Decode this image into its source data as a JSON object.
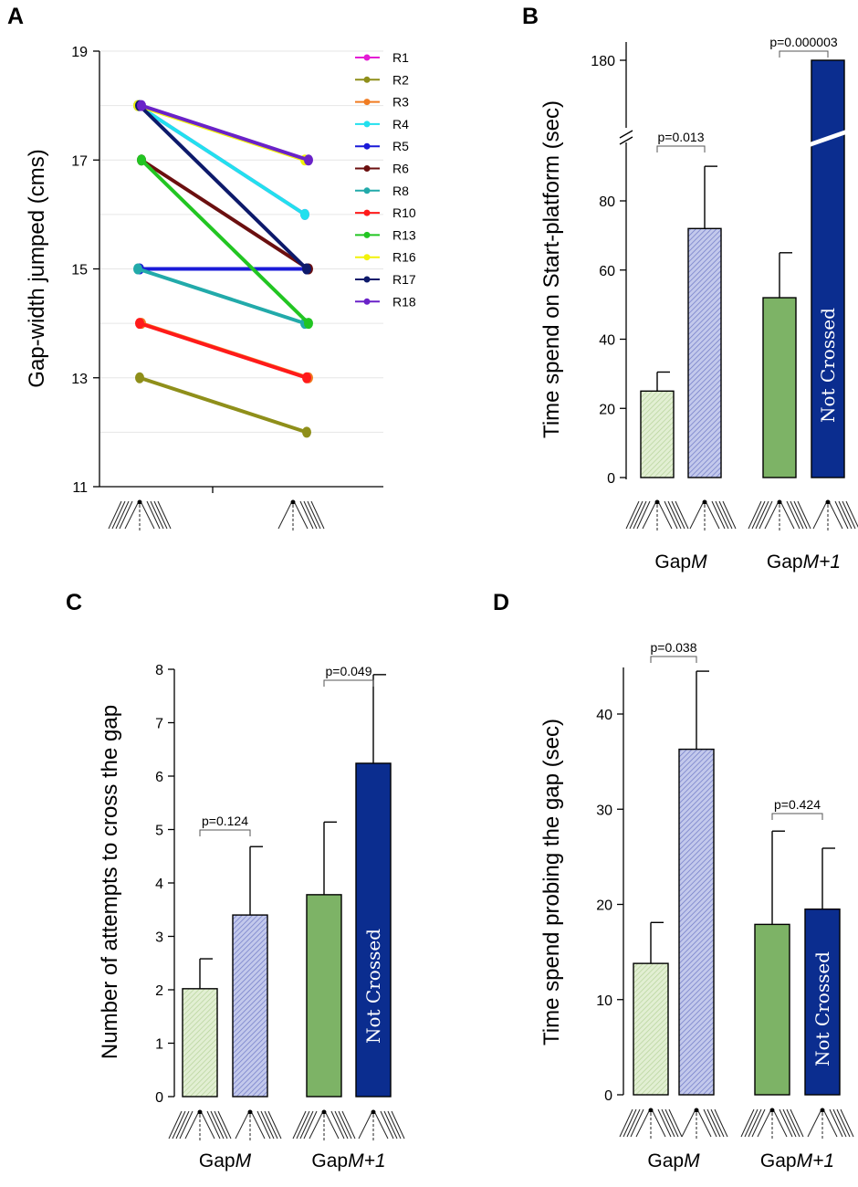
{
  "colors": {
    "gapm_pre": "#d6e8c4",
    "gapm_post": "#aab2e0",
    "gapm1_pre": "#7db366",
    "gapm1_post": "#0b2d8f",
    "grid": "#e6e6e6"
  },
  "icons": {
    "pre_condition": "whiskers-intact-icon",
    "post_condition": "whiskers-trimmed-icon"
  },
  "chart_data": [
    {
      "panel": "A",
      "type": "line",
      "title": "",
      "ylabel": "Gap-width jumped (cms)",
      "xlabel": "",
      "ylim": [
        11,
        19
      ],
      "yticks": [
        "11",
        "13",
        "15",
        "17",
        "19"
      ],
      "legend_position": "top-right",
      "x": [
        "intact whiskers",
        "trimmed whiskers"
      ],
      "series": [
        {
          "name": "R1",
          "color": "#e41ad4",
          "values": [
            18,
            16
          ]
        },
        {
          "name": "R2",
          "color": "#8f8f1a",
          "values": [
            13,
            12
          ]
        },
        {
          "name": "R3",
          "color": "#f07c22",
          "values": [
            14,
            13
          ]
        },
        {
          "name": "R4",
          "color": "#22e0ee",
          "values": [
            18,
            16
          ]
        },
        {
          "name": "R5",
          "color": "#1a1ad8",
          "values": [
            15,
            15
          ]
        },
        {
          "name": "R6",
          "color": "#6b0f0f",
          "values": [
            17,
            15
          ]
        },
        {
          "name": "R8",
          "color": "#22aaaa",
          "values": [
            15,
            14
          ]
        },
        {
          "name": "R10",
          "color": "#ff1a1a",
          "values": [
            14,
            13
          ]
        },
        {
          "name": "R13",
          "color": "#22c522",
          "values": [
            17,
            14
          ]
        },
        {
          "name": "R16",
          "color": "#f2f20a",
          "values": [
            18,
            17
          ]
        },
        {
          "name": "R17",
          "color": "#0d1a6b",
          "values": [
            18,
            15
          ]
        },
        {
          "name": "R18",
          "color": "#6a22c8",
          "values": [
            18,
            17
          ]
        }
      ]
    },
    {
      "panel": "B",
      "type": "bar",
      "ylabel": "Time spend on Start-platform (sec)",
      "ylim": [
        0,
        180
      ],
      "axis_break": [
        95,
        175
      ],
      "yticks": [
        "0",
        "20",
        "40",
        "60",
        "80",
        "180"
      ],
      "groups": [
        {
          "label_prefix": "Gap",
          "label_emph": "M",
          "bars": [
            {
              "value": 25,
              "err": 5.5,
              "color_key": "gapm_pre",
              "hatched": true
            },
            {
              "value": 72,
              "err": 18,
              "color_key": "gapm_post",
              "hatched": true
            }
          ],
          "pvalue": "p=0.013"
        },
        {
          "label_prefix": "Gap",
          "label_emph": "M+1",
          "bars": [
            {
              "value": 52,
              "err": 13,
              "color_key": "gapm1_pre",
              "hatched": false
            },
            {
              "value": 180,
              "err": 0,
              "color_key": "gapm1_post",
              "hatched": false,
              "note": "Not Crossed"
            }
          ],
          "pvalue": "p=0.000003"
        }
      ]
    },
    {
      "panel": "C",
      "type": "bar",
      "ylabel": "Number of attempts to cross the gap",
      "ylim": [
        0,
        8
      ],
      "yticks": [
        "0",
        "1",
        "2",
        "3",
        "4",
        "5",
        "6",
        "7",
        "8"
      ],
      "groups": [
        {
          "label_prefix": "Gap",
          "label_emph": "M",
          "bars": [
            {
              "value": 2.02,
              "err": 0.56,
              "color_key": "gapm_pre",
              "hatched": true
            },
            {
              "value": 3.4,
              "err": 1.28,
              "color_key": "gapm_post",
              "hatched": true
            }
          ],
          "pvalue": "p=0.124"
        },
        {
          "label_prefix": "Gap",
          "label_emph": "M+1",
          "bars": [
            {
              "value": 3.78,
              "err": 1.36,
              "color_key": "gapm1_pre",
              "hatched": false
            },
            {
              "value": 6.24,
              "err": 1.66,
              "color_key": "gapm1_post",
              "hatched": false,
              "note": "Not Crossed"
            }
          ],
          "pvalue": "p=0.049"
        }
      ]
    },
    {
      "panel": "D",
      "type": "bar",
      "ylabel": "Time spend probing the gap (sec)",
      "ylim": [
        0,
        45
      ],
      "yticks": [
        "0",
        "10",
        "20",
        "30",
        "40"
      ],
      "groups": [
        {
          "label_prefix": "Gap",
          "label_emph": "M",
          "bars": [
            {
              "value": 13.8,
              "err": 4.3,
              "color_key": "gapm_pre",
              "hatched": true
            },
            {
              "value": 36.3,
              "err": 8.2,
              "color_key": "gapm_post",
              "hatched": true
            }
          ],
          "pvalue": "p=0.038"
        },
        {
          "label_prefix": "Gap",
          "label_emph": "M+1",
          "bars": [
            {
              "value": 17.9,
              "err": 9.8,
              "color_key": "gapm1_pre",
              "hatched": false
            },
            {
              "value": 19.5,
              "err": 6.4,
              "color_key": "gapm1_post",
              "hatched": false,
              "note": "Not Crossed"
            }
          ],
          "pvalue": "p=0.424"
        }
      ]
    }
  ]
}
